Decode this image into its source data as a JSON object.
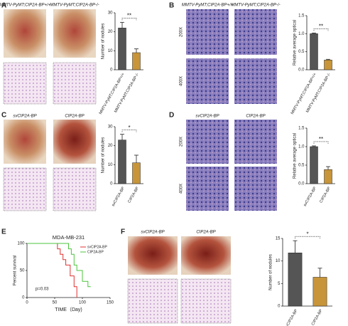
{
  "figure": {
    "panel_letters": [
      "A",
      "B",
      "C",
      "D",
      "E",
      "F"
    ],
    "image_labels": [
      "MMTV-PyMT;CIP2A-BP+/+",
      "MMTV-PyMT;CIP2A-BP-/-",
      "MMTV-PyMT;CIP2A-BP+/+",
      "MMTV-PyMT;CIP2A-BP-/-",
      "svCIP2A-BP",
      "CIP2A-BP",
      "svCIP2A-BP",
      "CIP2A-BP",
      "svCIP2A-BP",
      "CIP2A-BP"
    ],
    "magnifications": [
      "200X",
      "400X",
      "200X",
      "400X"
    ]
  },
  "chart_data": [
    {
      "type": "bar",
      "y_label": "Number of nodules",
      "categories": [
        "MMTV-PyMT;CIP2A-BP+/+",
        "MMTV-PyMT;CIP2A-BP-/-"
      ],
      "values": [
        22,
        9
      ],
      "errors": [
        3,
        2
      ],
      "colors": [
        "#555555",
        "#c8953a"
      ],
      "ylim": [
        0,
        30
      ],
      "yticks": [
        0,
        10,
        20,
        30
      ],
      "significance": "**"
    },
    {
      "type": "bar",
      "y_label": "Relative average optical",
      "categories": [
        "MMTV-PyMT;CIP2A-BP+/+",
        "MMTV-PyMT;CIP2A-BP-/-"
      ],
      "values": [
        1.0,
        0.27
      ],
      "errors": [
        0.02,
        0.02
      ],
      "colors": [
        "#555555",
        "#c8953a"
      ],
      "ylim": [
        0,
        1.5
      ],
      "yticks": [
        {
          "value": 0,
          "label": "0.0"
        },
        0.5,
        {
          "value": 1,
          "label": "1.0"
        },
        1.5
      ],
      "significance": "**"
    },
    {
      "type": "bar",
      "y_label": "Number of nodules",
      "categories": [
        "svCIP2A-BP",
        "CIP2A-BP"
      ],
      "values": [
        23,
        11
      ],
      "errors": [
        3,
        4
      ],
      "colors": [
        "#555555",
        "#c8953a"
      ],
      "ylim": [
        0,
        30
      ],
      "yticks": [
        0,
        10,
        20,
        30
      ],
      "significance": "*"
    },
    {
      "type": "bar",
      "y_label": "Relative average optical",
      "categories": [
        "svCIP2A-BP",
        "CIP2A-BP"
      ],
      "values": [
        1.0,
        0.38
      ],
      "errors": [
        0.02,
        0.08
      ],
      "colors": [
        "#555555",
        "#c8953a"
      ],
      "ylim": [
        0,
        1.5
      ],
      "yticks": [
        {
          "value": 0,
          "label": "0.0"
        },
        0.5,
        {
          "value": 1,
          "label": "1.0"
        },
        1.5
      ],
      "significance": "**"
    },
    {
      "type": "line",
      "title": "MDA-MB-231",
      "x_label": "TIME（Day)",
      "y_label": "Percent survival",
      "annotation": "p=0.03",
      "xlim": [
        0,
        150
      ],
      "xticks": [
        0,
        50,
        100,
        150
      ],
      "ylim": [
        0,
        100
      ],
      "yticks": [
        0,
        50,
        100
      ],
      "series": [
        {
          "name": "svCIP2A-BP",
          "color": "#e03030",
          "x": [
            0,
            55,
            55,
            60,
            60,
            65,
            65,
            70,
            70,
            78,
            78,
            85,
            85,
            90,
            90
          ],
          "values": [
            100,
            100,
            90,
            90,
            80,
            80,
            70,
            70,
            60,
            60,
            40,
            40,
            20,
            20,
            0
          ]
        },
        {
          "name": "CIP2A-BP",
          "color": "#4cc43c",
          "x": [
            0,
            75,
            75,
            80,
            80,
            85,
            85,
            90,
            90,
            100,
            100,
            110,
            110,
            115
          ],
          "values": [
            100,
            100,
            90,
            90,
            80,
            80,
            60,
            60,
            50,
            50,
            30,
            30,
            20,
            20
          ]
        }
      ]
    },
    {
      "type": "bar",
      "y_label": "Number of nodules",
      "categories": [
        "svCIP2A-BP",
        "CIP2A-BP"
      ],
      "values": [
        11.8,
        6.4
      ],
      "errors": [
        2.7,
        2.0
      ],
      "colors": [
        "#555555",
        "#c8953a"
      ],
      "ylim": [
        0,
        15
      ],
      "yticks": [
        0,
        5,
        10,
        15
      ],
      "significance": "*"
    }
  ]
}
